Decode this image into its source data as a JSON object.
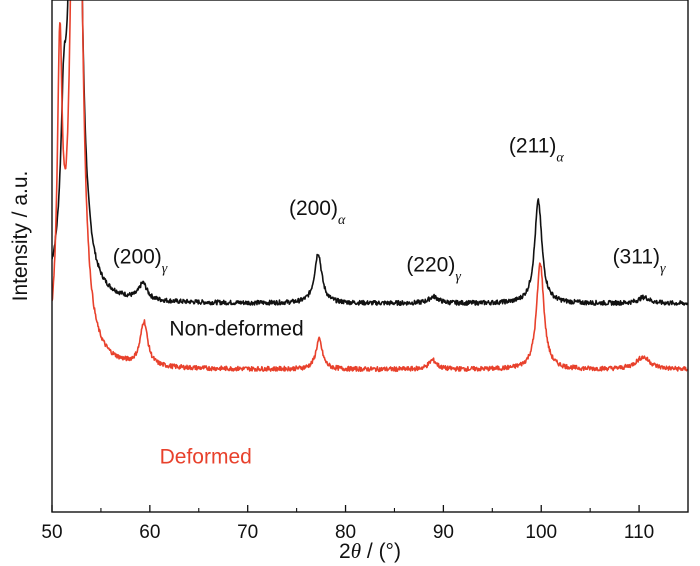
{
  "chart_data": {
    "type": "line",
    "xlabel_prefix": "2",
    "xlabel_symbol": "θ",
    "xlabel_suffix": " / (°)",
    "ylabel": "Intensity / a.u.",
    "xlim": [
      50,
      115
    ],
    "ylim": [
      0,
      100
    ],
    "x_ticks": [
      50,
      60,
      70,
      80,
      90,
      100,
      110
    ],
    "grid": false,
    "series": [
      {
        "name": "Non-deformed",
        "color": "#111111",
        "baseline": 40.7,
        "peaks": [
          {
            "center": 51.2,
            "height": 24.0,
            "width": 0.35
          },
          {
            "center": 52.4,
            "height": 200.0,
            "width": 0.45
          },
          {
            "center": 59.3,
            "height": 3.2,
            "width": 0.5
          },
          {
            "center": 77.2,
            "height": 9.8,
            "width": 0.45
          },
          {
            "center": 89.0,
            "height": 1.3,
            "width": 0.6
          },
          {
            "center": 99.7,
            "height": 20.0,
            "width": 0.45
          },
          {
            "center": 110.5,
            "height": 1.2,
            "width": 0.7
          }
        ]
      },
      {
        "name": "Deformed",
        "color": "#e8412c",
        "baseline": 27.8,
        "peaks": [
          {
            "center": 50.8,
            "height": 55.0,
            "width": 0.3
          },
          {
            "center": 52.5,
            "height": 200.0,
            "width": 0.45
          },
          {
            "center": 59.4,
            "height": 8.6,
            "width": 0.45
          },
          {
            "center": 77.3,
            "height": 5.8,
            "width": 0.4
          },
          {
            "center": 88.9,
            "height": 1.8,
            "width": 0.5
          },
          {
            "center": 99.9,
            "height": 20.8,
            "width": 0.45
          },
          {
            "center": 110.4,
            "height": 2.4,
            "width": 0.9
          }
        ]
      }
    ],
    "annotations": [
      {
        "text": "(200)",
        "subscript": "γ",
        "x": 59.0,
        "y": 48.5
      },
      {
        "text": "(200)",
        "subscript": "α",
        "x": 77.1,
        "y": 58.0
      },
      {
        "text": "(220)",
        "subscript": "γ",
        "x": 89.0,
        "y": 47.0
      },
      {
        "text": "(211)",
        "subscript": "α",
        "x": 99.5,
        "y": 70.2
      },
      {
        "text": "(311)",
        "subscript": "γ",
        "x": 110.0,
        "y": 48.5
      }
    ],
    "series_labels": [
      {
        "text": "Non-deformed",
        "x": 62.0,
        "y": 34.5
      },
      {
        "text": "Deformed",
        "x": 61.0,
        "y": 9.5
      }
    ]
  }
}
